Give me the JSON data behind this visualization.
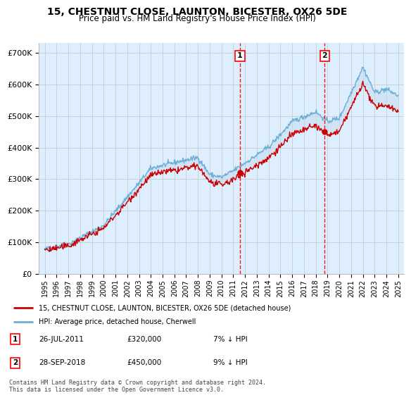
{
  "title": "15, CHESTNUT CLOSE, LAUNTON, BICESTER, OX26 5DE",
  "subtitle": "Price paid vs. HM Land Registry's House Price Index (HPI)",
  "legend_line1": "15, CHESTNUT CLOSE, LAUNTON, BICESTER, OX26 5DE (detached house)",
  "legend_line2": "HPI: Average price, detached house, Cherwell",
  "footnote": "Contains HM Land Registry data © Crown copyright and database right 2024.\nThis data is licensed under the Open Government Licence v3.0.",
  "sale1_label": "1",
  "sale1_date": "26-JUL-2011",
  "sale1_price": "£320,000",
  "sale1_note": "7% ↓ HPI",
  "sale2_label": "2",
  "sale2_date": "28-SEP-2018",
  "sale2_price": "£450,000",
  "sale2_note": "9% ↓ HPI",
  "sale1_x": 2011.57,
  "sale1_y": 320000,
  "sale2_x": 2018.75,
  "sale2_y": 450000,
  "hpi_color": "#6baed6",
  "hpi_fill_color": "#c6dbef",
  "price_color": "#cc0000",
  "vline_color": "#ff0000",
  "grid_color": "#cccccc",
  "background_color": "#ddeeff",
  "ylim": [
    0,
    730000
  ],
  "xlim": [
    1994.5,
    2025.5
  ],
  "yticks": [
    0,
    100000,
    200000,
    300000,
    400000,
    500000,
    600000,
    700000
  ],
  "ytick_labels": [
    "£0",
    "£100K",
    "£200K",
    "£300K",
    "£400K",
    "£500K",
    "£600K",
    "£700K"
  ],
  "xticks": [
    1995,
    1996,
    1997,
    1998,
    1999,
    2000,
    2001,
    2002,
    2003,
    2004,
    2005,
    2006,
    2007,
    2008,
    2009,
    2010,
    2011,
    2012,
    2013,
    2014,
    2015,
    2016,
    2017,
    2018,
    2019,
    2020,
    2021,
    2022,
    2023,
    2024,
    2025
  ]
}
